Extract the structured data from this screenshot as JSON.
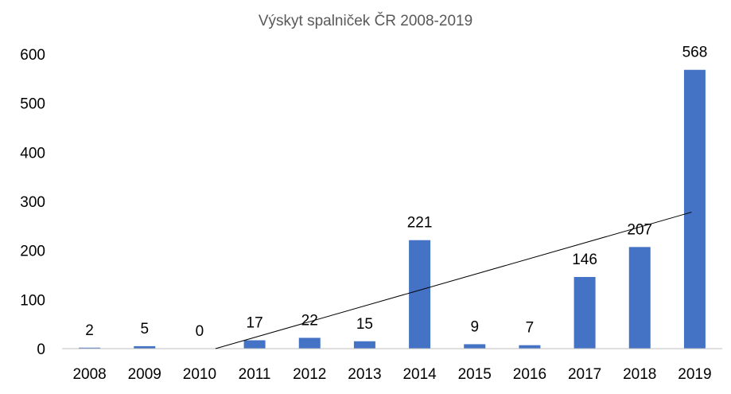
{
  "chart_data": {
    "type": "bar",
    "title": "Výskyt spalniček ČR 2008-2019",
    "xlabel": "",
    "ylabel": "",
    "categories": [
      "2008",
      "2009",
      "2010",
      "2011",
      "2012",
      "2013",
      "2014",
      "2015",
      "2016",
      "2017",
      "2018",
      "2019"
    ],
    "values": [
      2,
      5,
      0,
      17,
      22,
      15,
      221,
      9,
      7,
      146,
      207,
      568
    ],
    "data_labels": [
      "2",
      "5",
      "0",
      "17",
      "22",
      "15",
      "221",
      "9",
      "7",
      "146",
      "207",
      "568"
    ],
    "ylim": [
      0,
      600
    ],
    "yticks": [
      "0",
      "100",
      "200",
      "300",
      "400",
      "500",
      "600"
    ],
    "grid": false,
    "legend": "none",
    "trendline": {
      "type": "linear",
      "from": [
        2010,
        0
      ],
      "to": [
        2019,
        278
      ]
    },
    "colors": {
      "bar": "#4472C4",
      "trendline": "#000000",
      "axis": "#BFBFBF",
      "title": "#595959"
    }
  }
}
